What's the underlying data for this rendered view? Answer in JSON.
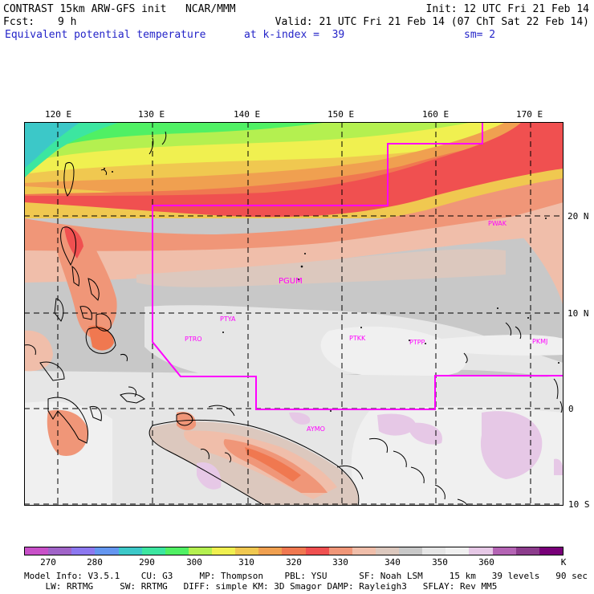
{
  "header": {
    "title": "CONTRAST 15km ARW-GFS init   NCAR/MMM",
    "init": "Init: 12 UTC Fri 21 Feb 14",
    "fcst_label": "Fcst:",
    "fcst_value": "9 h",
    "valid": "Valid: 21 UTC Fri 21 Feb 14 (07 ChT Sat 22 Feb 14)",
    "field": "Equivalent potential temperature",
    "level": "at k-index =  39",
    "smoothing": "sm= 2"
  },
  "map": {
    "lon_labels": [
      "120 E",
      "130 E",
      "140 E",
      "150 E",
      "160 E",
      "170 E"
    ],
    "lat_labels": [
      "20 N",
      "10 N",
      "0",
      "10 S"
    ],
    "stations": [
      "PGUM",
      "PTYA",
      "PTRO",
      "PTKK",
      "PTPP",
      "PKMJ",
      "PWAK",
      "AYMO"
    ],
    "boundary_color": "#ff00ff"
  },
  "colorbar": {
    "colors": [
      "#c850c8",
      "#a064c8",
      "#8c78f0",
      "#6496f0",
      "#3cc8c8",
      "#3ce6a0",
      "#50f064",
      "#b4f050",
      "#f0f050",
      "#f0c850",
      "#f0a050",
      "#f07850",
      "#f05050",
      "#f09678",
      "#f0beaa",
      "#dcc8be",
      "#c8c8c8",
      "#e6e6e6",
      "#f0f0f0",
      "#e6c8e6",
      "#b464b4",
      "#8c3c8c",
      "#780078"
    ],
    "labels": [
      "270",
      "280",
      "290",
      "300",
      "310",
      "320",
      "330",
      "340",
      "350",
      "360"
    ],
    "unit": "K"
  },
  "footer": {
    "line1": "Model Info: V3.5.1    CU: G3     MP: Thompson    PBL: YSU      SF: Noah LSM     15 km   39 levels   90 sec",
    "line2": "    LW: RRTMG     SW: RRTMG   DIFF: simple KM: 3D Smagor DAMP: Rayleigh3   SFLAY: Rev MM5"
  }
}
